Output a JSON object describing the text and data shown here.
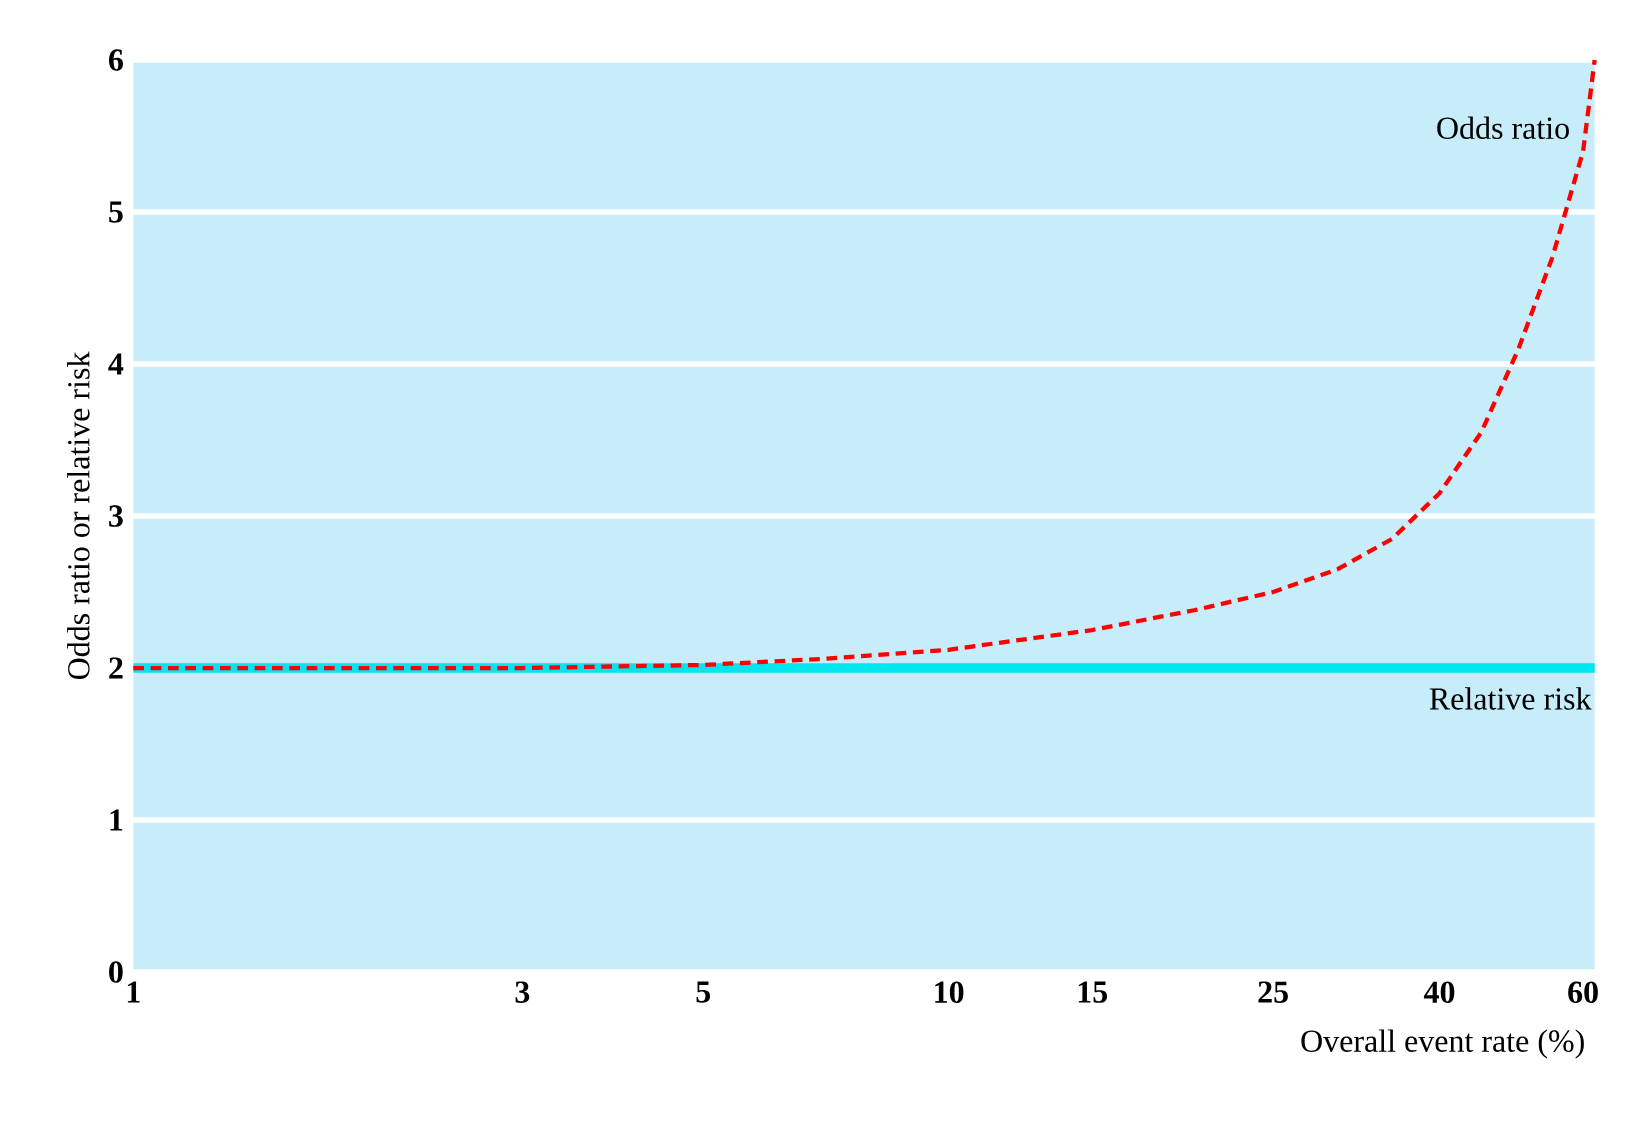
{
  "chart_data": {
    "type": "line",
    "xlabel": "Overall event rate (%)",
    "ylabel": "Odds ratio or relative risk",
    "log": "x",
    "xlim": [
      1,
      62
    ],
    "xticks": [
      1,
      3,
      5,
      10,
      15,
      25,
      40,
      60
    ],
    "ylim": [
      0,
      6
    ],
    "yticks": [
      0,
      1,
      2,
      3,
      4,
      5,
      6
    ],
    "grid": "y",
    "legend": false,
    "marker": "none",
    "series": [
      {
        "name": "Odds ratio",
        "color": "#ff0000",
        "line_style": "dashed",
        "x": [
          1,
          2,
          3,
          5,
          7,
          10,
          15,
          20,
          25,
          30,
          35,
          40,
          45,
          50,
          55,
          60,
          62
        ],
        "values": [
          2,
          2,
          2,
          2.02,
          2.06,
          2.12,
          2.25,
          2.38,
          2.5,
          2.65,
          2.85,
          3.15,
          3.55,
          4.1,
          4.7,
          5.4,
          6
        ]
      },
      {
        "name": "Relative risk",
        "color": "#00e5ee",
        "line_style": "solid",
        "x": [
          1,
          62
        ],
        "values": [
          2,
          2
        ]
      }
    ]
  }
}
